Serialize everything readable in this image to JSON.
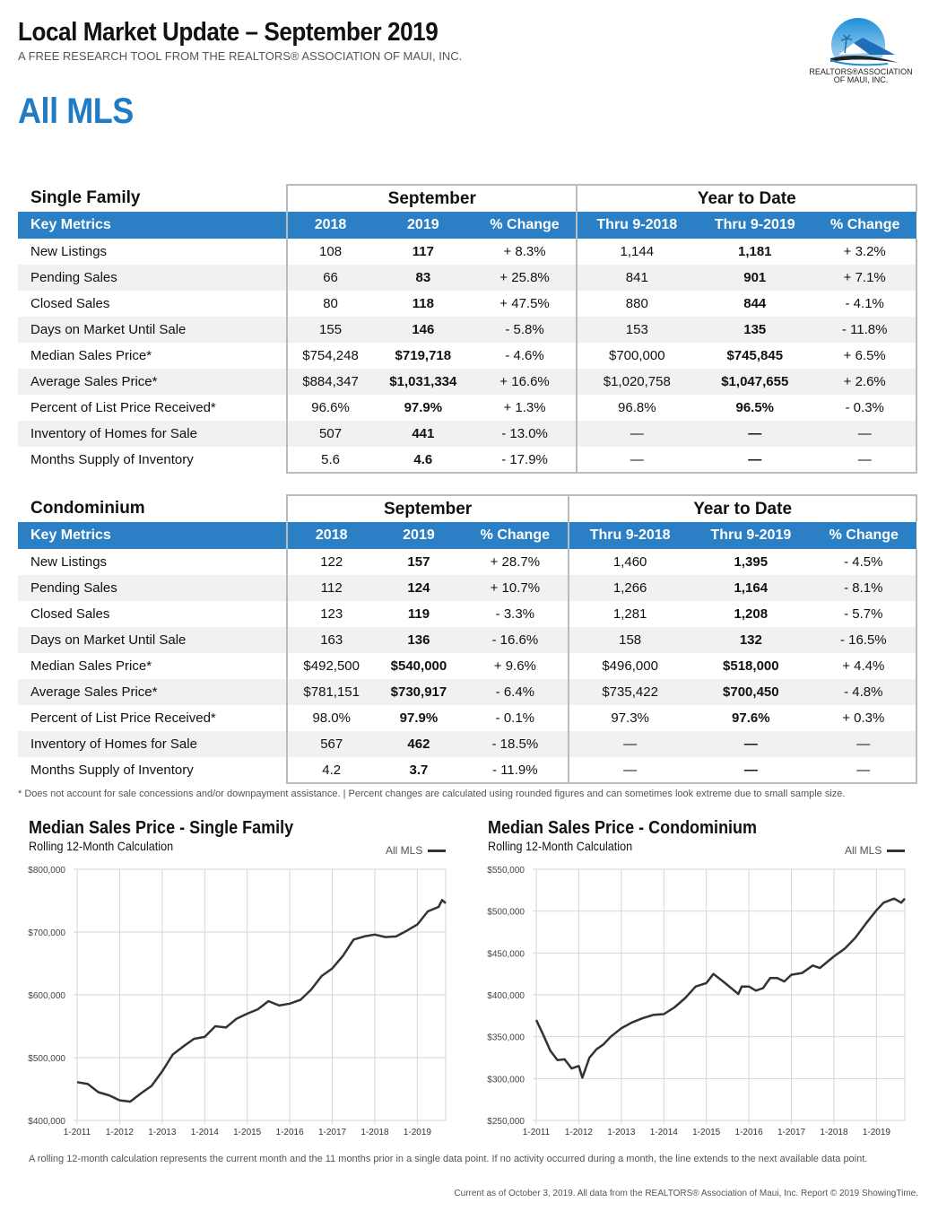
{
  "header": {
    "title": "Local Market Update – September 2019",
    "subtitle": "A FREE RESEARCH TOOL FROM THE REALTORS® ASSOCIATION OF MAUI, INC.",
    "area": "All MLS",
    "logo_text": [
      "REALTORS®ASSOCIATION",
      "OF MAUI, INC."
    ]
  },
  "colors": {
    "accent": "#2b80c5",
    "title_blue": "#1f7cc4"
  },
  "tables": [
    {
      "section": "Single Family",
      "group1": "September",
      "group2": "Year to Date",
      "headers": [
        "Key Metrics",
        "2018",
        "2019",
        "% Change",
        "Thru 9-2018",
        "Thru 9-2019",
        "% Change"
      ],
      "rows": [
        [
          "New Listings",
          "108",
          "117",
          "+ 8.3%",
          "1,144",
          "1,181",
          "+ 3.2%"
        ],
        [
          "Pending Sales",
          "66",
          "83",
          "+ 25.8%",
          "841",
          "901",
          "+ 7.1%"
        ],
        [
          "Closed Sales",
          "80",
          "118",
          "+ 47.5%",
          "880",
          "844",
          "- 4.1%"
        ],
        [
          "Days on Market Until Sale",
          "155",
          "146",
          "- 5.8%",
          "153",
          "135",
          "- 11.8%"
        ],
        [
          "Median Sales Price*",
          "$754,248",
          "$719,718",
          "- 4.6%",
          "$700,000",
          "$745,845",
          "+ 6.5%"
        ],
        [
          "Average Sales Price*",
          "$884,347",
          "$1,031,334",
          "+ 16.6%",
          "$1,020,758",
          "$1,047,655",
          "+ 2.6%"
        ],
        [
          "Percent of List Price Received*",
          "96.6%",
          "97.9%",
          "+ 1.3%",
          "96.8%",
          "96.5%",
          "- 0.3%"
        ],
        [
          "Inventory of Homes for Sale",
          "507",
          "441",
          "- 13.0%",
          "—",
          "—",
          "—"
        ],
        [
          "Months Supply of Inventory",
          "5.6",
          "4.6",
          "- 17.9%",
          "—",
          "—",
          "—"
        ]
      ]
    },
    {
      "section": "Condominium",
      "group1": "September",
      "group2": "Year to Date",
      "headers": [
        "Key Metrics",
        "2018",
        "2019",
        "% Change",
        "Thru 9-2018",
        "Thru 9-2019",
        "% Change"
      ],
      "rows": [
        [
          "New Listings",
          "122",
          "157",
          "+ 28.7%",
          "1,460",
          "1,395",
          "- 4.5%"
        ],
        [
          "Pending Sales",
          "112",
          "124",
          "+ 10.7%",
          "1,266",
          "1,164",
          "- 8.1%"
        ],
        [
          "Closed Sales",
          "123",
          "119",
          "- 3.3%",
          "1,281",
          "1,208",
          "- 5.7%"
        ],
        [
          "Days on Market Until Sale",
          "163",
          "136",
          "- 16.6%",
          "158",
          "132",
          "- 16.5%"
        ],
        [
          "Median Sales Price*",
          "$492,500",
          "$540,000",
          "+ 9.6%",
          "$496,000",
          "$518,000",
          "+ 4.4%"
        ],
        [
          "Average Sales Price*",
          "$781,151",
          "$730,917",
          "- 6.4%",
          "$735,422",
          "$700,450",
          "- 4.8%"
        ],
        [
          "Percent of List Price Received*",
          "98.0%",
          "97.9%",
          "- 0.1%",
          "97.3%",
          "97.6%",
          "+ 0.3%"
        ],
        [
          "Inventory of Homes for Sale",
          "567",
          "462",
          "- 18.5%",
          "—",
          "—",
          "—"
        ],
        [
          "Months Supply of Inventory",
          "4.2",
          "3.7",
          "- 11.9%",
          "—",
          "—",
          "—"
        ]
      ]
    }
  ],
  "footnote": "* Does not account for sale concessions and/or downpayment assistance. | Percent changes are calculated using rounded figures and can sometimes look extreme due to small sample size.",
  "chart_data": [
    {
      "type": "line",
      "title": "Median Sales Price - Single Family",
      "subtitle": "Rolling 12-Month Calculation",
      "legend": "All MLS",
      "legend_position": "top-right",
      "grid": true,
      "ylim": [
        400000,
        800000
      ],
      "yticks": [
        "$400,000",
        "$500,000",
        "$600,000",
        "$700,000",
        "$800,000"
      ],
      "ytick_values": [
        400000,
        500000,
        600000,
        700000,
        800000
      ],
      "xlim": [
        "2011-01",
        "2019-09"
      ],
      "xticks": [
        "1-2011",
        "1-2012",
        "1-2013",
        "1-2014",
        "1-2015",
        "1-2016",
        "1-2017",
        "1-2018",
        "1-2019"
      ],
      "series": [
        {
          "name": "All MLS",
          "x": [
            "2011-01",
            "2011-04",
            "2011-07",
            "2011-10",
            "2012-01",
            "2012-04",
            "2012-07",
            "2012-10",
            "2013-01",
            "2013-04",
            "2013-07",
            "2013-10",
            "2014-01",
            "2014-04",
            "2014-07",
            "2014-10",
            "2015-01",
            "2015-04",
            "2015-07",
            "2015-10",
            "2016-01",
            "2016-04",
            "2016-07",
            "2016-10",
            "2017-01",
            "2017-04",
            "2017-07",
            "2017-10",
            "2018-01",
            "2018-04",
            "2018-07",
            "2018-10",
            "2019-01",
            "2019-04",
            "2019-07",
            "2019-08",
            "2019-09"
          ],
          "y": [
            461000,
            458000,
            445000,
            440000,
            432000,
            430000,
            443000,
            455000,
            478000,
            505000,
            518000,
            530000,
            533000,
            550000,
            548000,
            562000,
            570000,
            577000,
            590000,
            583000,
            586000,
            592000,
            608000,
            630000,
            642000,
            662000,
            688000,
            693000,
            696000,
            692000,
            693000,
            702000,
            712000,
            733000,
            740000,
            751000,
            746000
          ]
        }
      ]
    },
    {
      "type": "line",
      "title": "Median Sales Price - Condominium",
      "subtitle": "Rolling 12-Month Calculation",
      "legend": "All MLS",
      "legend_position": "top-right",
      "grid": true,
      "ylim": [
        250000,
        550000
      ],
      "yticks": [
        "$250,000",
        "$300,000",
        "$350,000",
        "$400,000",
        "$450,000",
        "$500,000",
        "$550,000"
      ],
      "ytick_values": [
        250000,
        300000,
        350000,
        400000,
        450000,
        500000,
        550000
      ],
      "xlim": [
        "2011-01",
        "2019-09"
      ],
      "xticks": [
        "1-2011",
        "1-2012",
        "1-2013",
        "1-2014",
        "1-2015",
        "1-2016",
        "1-2017",
        "1-2018",
        "1-2019"
      ],
      "series": [
        {
          "name": "All MLS",
          "x": [
            "2011-01",
            "2011-03",
            "2011-05",
            "2011-07",
            "2011-09",
            "2011-11",
            "2012-01",
            "2012-02",
            "2012-04",
            "2012-06",
            "2012-08",
            "2012-10",
            "2013-01",
            "2013-04",
            "2013-07",
            "2013-10",
            "2014-01",
            "2014-04",
            "2014-07",
            "2014-10",
            "2015-01",
            "2015-03",
            "2015-06",
            "2015-08",
            "2015-10",
            "2015-11",
            "2016-01",
            "2016-03",
            "2016-05",
            "2016-07",
            "2016-09",
            "2016-11",
            "2017-01",
            "2017-04",
            "2017-07",
            "2017-09",
            "2018-01",
            "2018-04",
            "2018-07",
            "2018-10",
            "2019-01",
            "2019-03",
            "2019-06",
            "2019-08",
            "2019-09"
          ],
          "y": [
            370000,
            352000,
            333000,
            322000,
            323000,
            312000,
            315000,
            301000,
            325000,
            335000,
            341000,
            350000,
            360000,
            367000,
            372000,
            376000,
            377000,
            385000,
            396000,
            410000,
            414000,
            425000,
            415000,
            408000,
            401000,
            410000,
            410000,
            405000,
            408000,
            420000,
            420000,
            416000,
            424000,
            426000,
            435000,
            432000,
            446000,
            455000,
            468000,
            485000,
            501000,
            510000,
            515000,
            510000,
            515000
          ]
        }
      ]
    }
  ],
  "rolling_note": "A rolling 12-month calculation represents the current month and the 11 months prior in a single data point. If no activity occurred during a month, the line extends to the next available data point.",
  "current_note": "Current as of October 3, 2019. All data from the REALTORS® Association of Maui, Inc. Report © 2019 ShowingTime."
}
